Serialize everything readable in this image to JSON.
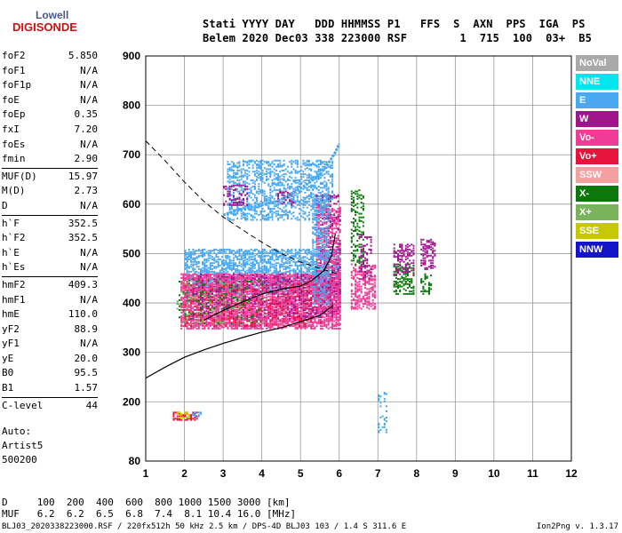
{
  "logo": {
    "line1": "Lowell",
    "line2": "DIGISONDE"
  },
  "header": {
    "line1": "Stati YYYY DAY   DDD HHMMSS P1   FFS  S  AXN  PPS  IGA  PS",
    "line2": "Belem 2020 Dec03 338 223000 RSF        1  715  100  03+  B5"
  },
  "params": [
    {
      "group": 1,
      "name": "foF2",
      "value": "5.850"
    },
    {
      "group": 1,
      "name": "foF1",
      "value": "N/A"
    },
    {
      "group": 1,
      "name": "foF1p",
      "value": "N/A"
    },
    {
      "group": 1,
      "name": "foE",
      "value": "N/A"
    },
    {
      "group": 1,
      "name": "foEp",
      "value": "0.35"
    },
    {
      "group": 1,
      "name": "fxI",
      "value": "7.20"
    },
    {
      "group": 1,
      "name": "foEs",
      "value": "N/A"
    },
    {
      "group": 1,
      "name": "fmin",
      "value": "2.90"
    },
    {
      "group": 2,
      "name": "MUF(D)",
      "value": "15.97"
    },
    {
      "group": 2,
      "name": "M(D)",
      "value": "2.73"
    },
    {
      "group": 2,
      "name": "D",
      "value": "N/A"
    },
    {
      "group": 3,
      "name": "h`F",
      "value": "352.5"
    },
    {
      "group": 3,
      "name": "h`F2",
      "value": "352.5"
    },
    {
      "group": 3,
      "name": "h`E",
      "value": "N/A"
    },
    {
      "group": 3,
      "name": "h`Es",
      "value": "N/A"
    },
    {
      "group": 4,
      "name": "hmF2",
      "value": "409.3"
    },
    {
      "group": 4,
      "name": "hmF1",
      "value": "N/A"
    },
    {
      "group": 4,
      "name": "hmE",
      "value": "110.0"
    },
    {
      "group": 4,
      "name": "yF2",
      "value": "88.9"
    },
    {
      "group": 4,
      "name": "yF1",
      "value": "N/A"
    },
    {
      "group": 4,
      "name": "yE",
      "value": "20.0"
    },
    {
      "group": 4,
      "name": "B0",
      "value": "95.5"
    },
    {
      "group": 4,
      "name": "B1",
      "value": "1.57"
    },
    {
      "group": 5,
      "name": "C-level",
      "value": "44"
    }
  ],
  "auto": {
    "line1": "Auto:",
    "line2": "Artist5",
    "line3": "500200"
  },
  "legend": [
    {
      "label": "NoVal",
      "color": "#a9a9a9"
    },
    {
      "label": "NNE",
      "color": "#00e5ee"
    },
    {
      "label": "E",
      "color": "#4aa8f0"
    },
    {
      "label": "W",
      "color": "#a0148c"
    },
    {
      "label": "Vo-",
      "color": "#f03c96"
    },
    {
      "label": "Vo+",
      "color": "#e6143c"
    },
    {
      "label": "SSW",
      "color": "#f5a0a0"
    },
    {
      "label": "X-",
      "color": "#0a780a"
    },
    {
      "label": "X+",
      "color": "#7ab45a"
    },
    {
      "label": "SSE",
      "color": "#c8c800"
    },
    {
      "label": "NNW",
      "color": "#1414c8"
    }
  ],
  "bottom": {
    "d_line": "D     100  200  400  600  800 1000 1500 3000 [km]",
    "muf_line": "MUF   6.2  6.2  6.5  6.8  7.4  8.1 10.4 16.0 [MHz]",
    "file_line": "BLJ03_2020338223000.RSF / 220fx512h 50 kHz 2.5 km / DPS-4D BLJ03 103 / 1.4 S 311.6 E",
    "version": "Ion2Png v. 1.3.17"
  },
  "chart_data": {
    "type": "scatter",
    "xlim": [
      1,
      12
    ],
    "ylim": [
      80,
      900
    ],
    "x_ticks": [
      1,
      2,
      3,
      4,
      5,
      6,
      7,
      8,
      9,
      10,
      11,
      12
    ],
    "y_ticks": [
      80,
      200,
      300,
      400,
      500,
      600,
      700,
      800,
      900
    ],
    "grid": true,
    "clusters": [
      {
        "mode": "E",
        "x": [
          2.0,
          6.0
        ],
        "y": [
          420,
          510
        ],
        "density": 0.55
      },
      {
        "mode": "E",
        "x": [
          3.1,
          5.8
        ],
        "y": [
          570,
          690
        ],
        "density": 0.35
      },
      {
        "mode": "Vo-",
        "x": [
          1.9,
          6.0
        ],
        "y": [
          350,
          460
        ],
        "density": 0.7
      },
      {
        "mode": "W",
        "x": [
          2.2,
          5.8
        ],
        "y": [
          370,
          460
        ],
        "density": 0.18
      },
      {
        "mode": "Vo+",
        "x": [
          2.0,
          5.5
        ],
        "y": [
          355,
          440
        ],
        "density": 0.1
      },
      {
        "mode": "X-",
        "x": [
          1.8,
          4.0
        ],
        "y": [
          360,
          450
        ],
        "density": 0.08
      },
      {
        "mode": "X+",
        "x": [
          1.8,
          3.5
        ],
        "y": [
          360,
          450
        ],
        "density": 0.06
      },
      {
        "mode": "W",
        "x": [
          5.4,
          6.0
        ],
        "y": [
          380,
          620
        ],
        "density": 0.3
      },
      {
        "mode": "Vo-",
        "x": [
          5.4,
          6.0
        ],
        "y": [
          380,
          600
        ],
        "density": 0.35
      },
      {
        "mode": "E",
        "x": [
          5.3,
          5.7
        ],
        "y": [
          400,
          620
        ],
        "density": 0.35
      },
      {
        "mode": "Vo-",
        "x": [
          6.3,
          6.9
        ],
        "y": [
          390,
          480
        ],
        "density": 0.45
      },
      {
        "mode": "X-",
        "x": [
          6.3,
          6.6
        ],
        "y": [
          480,
          630
        ],
        "density": 0.3
      },
      {
        "mode": "W",
        "x": [
          6.5,
          6.8
        ],
        "y": [
          450,
          540
        ],
        "density": 0.25
      },
      {
        "mode": "X-",
        "x": [
          7.4,
          7.9
        ],
        "y": [
          420,
          480
        ],
        "density": 0.4
      },
      {
        "mode": "W",
        "x": [
          7.4,
          7.9
        ],
        "y": [
          460,
          520
        ],
        "density": 0.4
      },
      {
        "mode": "W",
        "x": [
          8.1,
          8.5
        ],
        "y": [
          470,
          530
        ],
        "density": 0.4
      },
      {
        "mode": "X-",
        "x": [
          8.1,
          8.4
        ],
        "y": [
          420,
          460
        ],
        "density": 0.3
      },
      {
        "mode": "W",
        "x": [
          3.0,
          3.6
        ],
        "y": [
          600,
          640
        ],
        "density": 0.3
      },
      {
        "mode": "W",
        "x": [
          4.4,
          4.8
        ],
        "y": [
          600,
          630
        ],
        "density": 0.3
      },
      {
        "mode": "Vo+",
        "x": [
          1.7,
          2.3
        ],
        "y": [
          165,
          180
        ],
        "density": 0.6
      },
      {
        "mode": "SSE",
        "x": [
          1.8,
          2.1
        ],
        "y": [
          170,
          180
        ],
        "density": 0.5
      },
      {
        "mode": "E",
        "x": [
          2.2,
          2.4
        ],
        "y": [
          170,
          180
        ],
        "density": 0.4
      },
      {
        "mode": "E",
        "x": [
          7.0,
          7.2
        ],
        "y": [
          140,
          220
        ],
        "density": 0.15
      }
    ],
    "e_trace": [
      [
        3.0,
        578
      ],
      [
        3.3,
        586
      ],
      [
        3.6,
        592
      ],
      [
        4.0,
        598
      ],
      [
        4.4,
        606
      ],
      [
        4.8,
        622
      ],
      [
        5.2,
        642
      ],
      [
        5.5,
        660
      ],
      [
        5.7,
        680
      ],
      [
        5.9,
        705
      ],
      [
        6.0,
        722
      ]
    ],
    "dashed_curve": [
      [
        1.0,
        728
      ],
      [
        1.5,
        688
      ],
      [
        2.0,
        645
      ],
      [
        2.5,
        606
      ],
      [
        3.0,
        574
      ],
      [
        3.5,
        548
      ],
      [
        4.0,
        523
      ],
      [
        4.5,
        500
      ],
      [
        5.0,
        483
      ],
      [
        5.5,
        470
      ],
      [
        6.0,
        458
      ]
    ],
    "lower_curve": [
      [
        1.0,
        248
      ],
      [
        1.5,
        270
      ],
      [
        2.0,
        290
      ],
      [
        2.5,
        305
      ],
      [
        3.0,
        318
      ],
      [
        3.5,
        330
      ],
      [
        4.0,
        341
      ],
      [
        4.5,
        350
      ],
      [
        5.0,
        362
      ],
      [
        5.5,
        375
      ],
      [
        5.85,
        395
      ]
    ],
    "upper_curve": [
      [
        2.5,
        365
      ],
      [
        3.0,
        385
      ],
      [
        3.5,
        402
      ],
      [
        4.0,
        418
      ],
      [
        4.5,
        428
      ],
      [
        5.0,
        434
      ],
      [
        5.3,
        446
      ],
      [
        5.6,
        465
      ],
      [
        5.8,
        495
      ],
      [
        5.9,
        540
      ]
    ]
  }
}
